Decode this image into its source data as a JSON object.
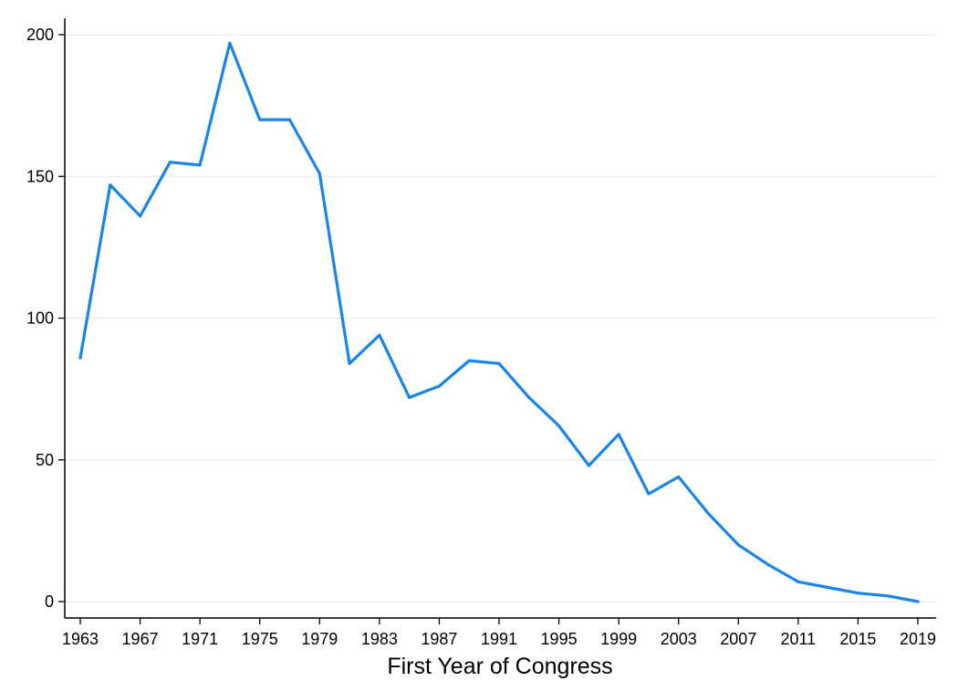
{
  "chart_data": {
    "type": "line",
    "title": "",
    "xlabel": "First Year of Congress",
    "ylabel": "",
    "xlim": [
      1963,
      2019
    ],
    "ylim": [
      0,
      200
    ],
    "x_ticks": [
      1963,
      1967,
      1971,
      1975,
      1979,
      1983,
      1987,
      1991,
      1995,
      1999,
      2003,
      2007,
      2011,
      2015,
      2019
    ],
    "y_ticks": [
      0,
      50,
      100,
      150,
      200
    ],
    "grid": "horizontal",
    "legend": "none",
    "series": [
      {
        "color": "#1a85e8",
        "x": [
          1963,
          1965,
          1967,
          1969,
          1971,
          1973,
          1975,
          1977,
          1979,
          1981,
          1983,
          1985,
          1987,
          1989,
          1991,
          1993,
          1995,
          1997,
          1999,
          2001,
          2003,
          2005,
          2007,
          2009,
          2011,
          2013,
          2015,
          2017,
          2019
        ],
        "y": [
          86,
          147,
          136,
          155,
          154,
          197,
          170,
          170,
          151,
          84,
          94,
          72,
          76,
          85,
          84,
          72,
          62,
          48,
          59,
          38,
          44,
          31,
          20,
          13,
          7,
          5,
          3,
          2,
          0
        ]
      }
    ]
  }
}
